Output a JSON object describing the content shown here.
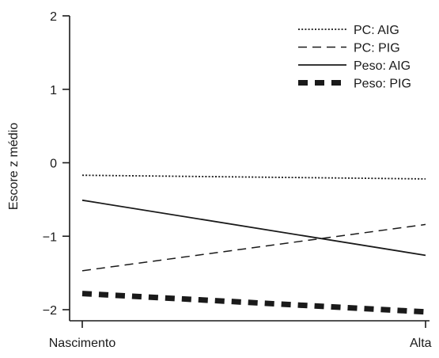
{
  "chart_data": {
    "type": "line",
    "title": "",
    "xlabel": "",
    "ylabel": "Escore z médio",
    "categories": [
      "Nascimento",
      "Alta"
    ],
    "ylim": [
      -2.2,
      2
    ],
    "yticks": [
      2,
      1,
      0,
      -1,
      -2
    ],
    "ytick_labels": [
      "2",
      "1",
      "0",
      "−1",
      "−2"
    ],
    "grid": false,
    "legend_position": "top-right",
    "series": [
      {
        "name": "PC: AIG",
        "values": [
          -0.17,
          -0.22
        ],
        "style": "dotted",
        "color": "#1a1a1a"
      },
      {
        "name": "PC: PIG",
        "values": [
          -1.47,
          -0.84
        ],
        "style": "dashed",
        "color": "#1a1a1a"
      },
      {
        "name": "Peso: AIG",
        "values": [
          -0.51,
          -1.26
        ],
        "style": "solid",
        "color": "#1a1a1a"
      },
      {
        "name": "Peso: PIG",
        "values": [
          -1.78,
          -2.03
        ],
        "style": "thick-dash",
        "color": "#1a1a1a"
      }
    ]
  }
}
